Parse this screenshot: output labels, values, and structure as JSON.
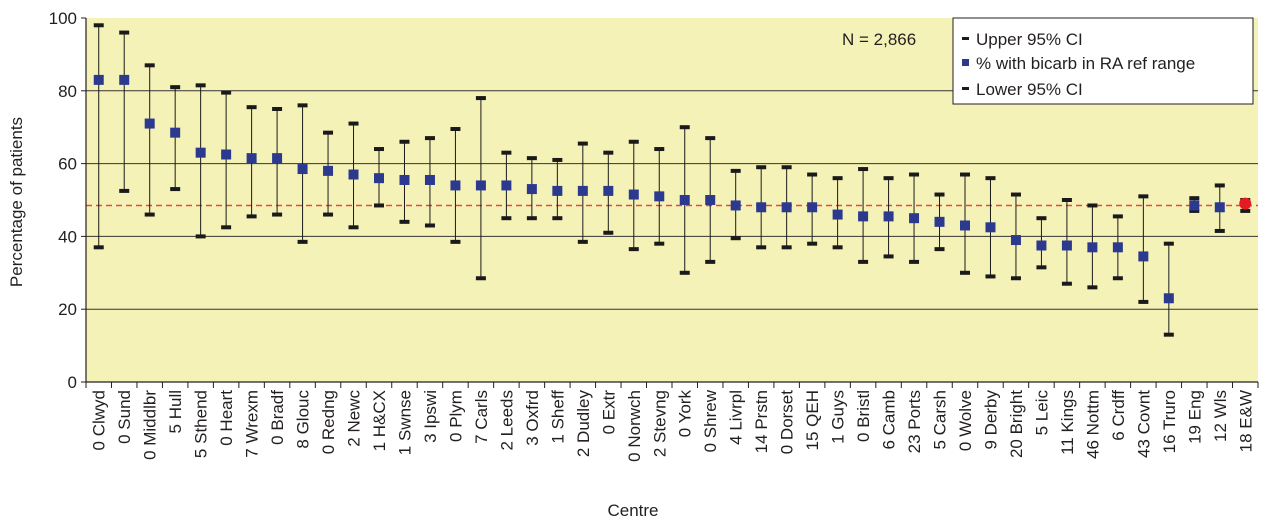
{
  "chart_data": {
    "type": "scatter",
    "description_series": [
      "Upper 95% CI",
      "% with bicarb in RA ref range",
      "Lower 95% CI"
    ],
    "ylabel": "Percentage of patients",
    "xlabel": "Centre",
    "ylim": [
      0,
      100
    ],
    "yticks": [
      0,
      20,
      40,
      60,
      80,
      100
    ],
    "annotation": "N = 2,866",
    "reference_line": 48.5,
    "grid": true,
    "legend_position": "top-right",
    "categories": [
      "0 Clwyd",
      "0 Sund",
      "0 Middlbr",
      "5 Hull",
      "5 Sthend",
      "0 Heart",
      "7 Wrexm",
      "0 Bradf",
      "8 Glouc",
      "0 Redng",
      "2 Newc",
      "1 H&CX",
      "1 Swnse",
      "3 Ipswi",
      "0 Plym",
      "7 Carls",
      "2 Leeds",
      "3 Oxfrd",
      "1 Sheff",
      "2 Dudley",
      "0 Extr",
      "0 Norwch",
      "2 Stevng",
      "0 York",
      "0 Shrew",
      "4 Livrpl",
      "14 Prstn",
      "0 Dorset",
      "15 QEH",
      "1 Guys",
      "0 Bristl",
      "6 Camb",
      "23 Ports",
      "5 Carsh",
      "0 Wolve",
      "9 Derby",
      "20 Bright",
      "5 Leic",
      "11 Kings",
      "46 Nottm",
      "6 Crdff",
      "43 Covnt",
      "16 Truro",
      "19 Eng",
      "12 Wls",
      "18 E&W"
    ],
    "series": [
      {
        "name": "Upper 95% CI",
        "values": [
          98,
          96,
          87,
          81,
          81.5,
          79.5,
          75.5,
          75,
          76,
          68.5,
          71,
          64,
          66,
          67,
          69.5,
          78,
          63,
          61.5,
          61,
          65.5,
          63,
          66,
          64,
          70,
          67,
          58,
          59,
          59,
          57,
          56,
          58.5,
          56,
          57,
          51.5,
          57,
          56,
          51.5,
          45,
          50,
          48.5,
          45.5,
          51,
          38,
          50.5,
          54,
          50
        ]
      },
      {
        "name": "% with bicarb in RA ref range",
        "values": [
          83,
          83,
          71,
          68.5,
          63,
          62.5,
          61.5,
          61.5,
          58.5,
          58,
          57,
          56,
          55.5,
          55.5,
          54,
          54,
          54,
          53,
          52.5,
          52.5,
          52.5,
          51.5,
          51,
          50,
          50,
          48.5,
          48,
          48,
          48,
          46,
          45.5,
          45.5,
          45,
          44,
          43,
          42.5,
          39,
          37.5,
          37.5,
          37,
          37,
          34.5,
          23,
          48.5,
          48,
          49
        ]
      },
      {
        "name": "Lower 95% CI",
        "values": [
          37,
          52.5,
          46,
          53,
          40,
          42.5,
          45.5,
          46,
          38.5,
          46,
          42.5,
          48.5,
          44,
          43,
          38.5,
          28.5,
          45,
          45,
          45,
          38.5,
          41,
          36.5,
          38,
          30,
          33,
          39.5,
          37,
          37,
          38,
          37,
          33,
          34.5,
          33,
          36.5,
          30,
          29,
          28.5,
          31.5,
          27,
          26,
          28.5,
          22,
          13,
          47,
          41.5,
          47
        ]
      }
    ],
    "highlight_category": "18 E&W",
    "colors": {
      "plot_background": "#f5f2b8",
      "ci_marker": "#1a1a1a",
      "point_marker": "#2b3a8f",
      "highlight_point": "#e31b23",
      "reference_line": "#e8473c",
      "grid": "#333333"
    }
  },
  "legend": {
    "upper_label": "Upper 95% CI",
    "point_label": "% with bicarb in RA ref range",
    "lower_label": "Lower 95% CI"
  },
  "axis": {
    "y_title": "Percentage of patients",
    "x_title": "Centre"
  },
  "annotation": "N = 2,866"
}
